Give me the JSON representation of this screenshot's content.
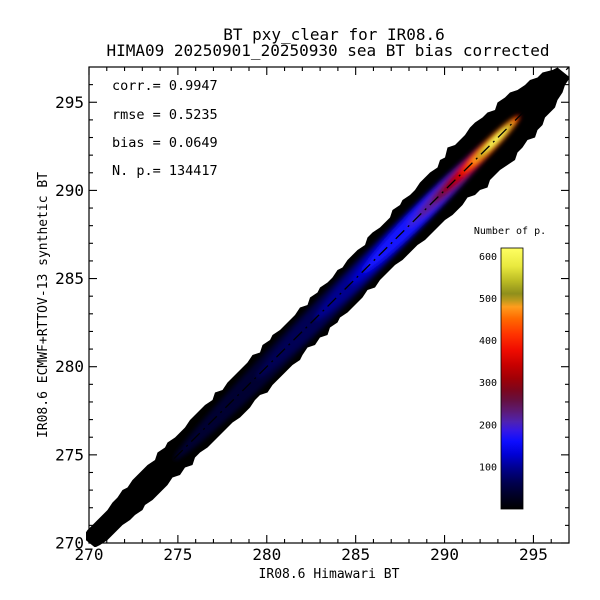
{
  "figure": {
    "background": "#ffffff",
    "text_color": "#000000"
  },
  "title": {
    "line1": "BT pxy_clear for IR08.6",
    "line2": "HIMA09 20250901_20250930 sea BT bias corrected"
  },
  "stats_display": {
    "corr": "corr.= 0.9947",
    "rmse": "rmse = 0.5235",
    "bias": "bias = 0.0649",
    "npoints": "N. p.=  134417"
  },
  "chart_data": {
    "type": "heatmap",
    "title": "BT pxy_clear for IR08.6",
    "subtitle": "HIMA09 20250901_20250930 sea BT bias corrected",
    "xlabel": "IR08.6 Himawari BT",
    "ylabel": "IR08.6 ECMWF+RTTOV-13 synthetic BT",
    "xlim": [
      270,
      297
    ],
    "ylim": [
      270,
      297
    ],
    "xticks": [
      270,
      275,
      280,
      285,
      290,
      295
    ],
    "yticks": [
      270,
      275,
      280,
      285,
      290,
      295
    ],
    "minor_tick_step": 1,
    "grid": false,
    "stats": {
      "corr": 0.9947,
      "rmse": 0.5235,
      "bias": 0.0649,
      "n_points": 134417
    },
    "identity_line": {
      "equation": "y = x",
      "style": "dash-dot",
      "color": "#000000"
    },
    "colorbar": {
      "title": "Number of p.",
      "min": 0,
      "max": 620,
      "ticks": [
        100,
        200,
        300,
        400,
        500,
        600
      ],
      "gradient": [
        [
          0.0,
          "#000000"
        ],
        [
          0.05,
          "#000024"
        ],
        [
          0.1,
          "#00004E"
        ],
        [
          0.16,
          "#000092"
        ],
        [
          0.21,
          "#0000D6"
        ],
        [
          0.26,
          "#0D0DFF"
        ],
        [
          0.3,
          "#3418E6"
        ],
        [
          0.335,
          "#4F22B0"
        ],
        [
          0.375,
          "#5D1A74"
        ],
        [
          0.415,
          "#651042"
        ],
        [
          0.455,
          "#7C061E"
        ],
        [
          0.5,
          "#A00006"
        ],
        [
          0.55,
          "#C60000"
        ],
        [
          0.61,
          "#F00C00"
        ],
        [
          0.67,
          "#FF3400"
        ],
        [
          0.73,
          "#FF6A00"
        ],
        [
          0.775,
          "#FF9D1D"
        ],
        [
          0.8,
          "#BC9A1C"
        ],
        [
          0.825,
          "#8F8F1C"
        ],
        [
          0.875,
          "#BCBC24"
        ],
        [
          0.93,
          "#E9E93E"
        ],
        [
          1.0,
          "#FFFF62"
        ]
      ]
    },
    "density": {
      "description": "Elongated diagonal density ridge along y=x from (270,270) to (296.7,296.7); counts rise toward the hot spot.",
      "peak": {
        "x": 292.8,
        "y": 293.0,
        "count": 620
      },
      "profile": [
        [
          270,
          0.48
        ],
        [
          271,
          0.6
        ],
        [
          272,
          0.7
        ],
        [
          273,
          0.76
        ],
        [
          274,
          0.81
        ],
        [
          275,
          0.85
        ],
        [
          276,
          0.88
        ],
        [
          277,
          0.9
        ],
        [
          278,
          0.92
        ],
        [
          279,
          0.94
        ],
        [
          280,
          0.96
        ],
        [
          281,
          0.97
        ],
        [
          282,
          0.98
        ],
        [
          283,
          1.0
        ],
        [
          284,
          1.01
        ],
        [
          285,
          1.03
        ],
        [
          286,
          1.06
        ],
        [
          287,
          1.1
        ],
        [
          288,
          1.16
        ],
        [
          289,
          1.23
        ],
        [
          290,
          1.3
        ],
        [
          291,
          1.37
        ],
        [
          292,
          1.42
        ],
        [
          292.8,
          1.45
        ],
        [
          293.5,
          1.42
        ],
        [
          294.2,
          1.33
        ],
        [
          295,
          1.15
        ],
        [
          295.7,
          0.92
        ],
        [
          296.2,
          0.68
        ],
        [
          296.7,
          0.4
        ]
      ],
      "layers": [
        [
          284.0,
          13.0,
          0.7,
          "#000030"
        ],
        [
          286.5,
          10.0,
          0.62,
          "#000055"
        ],
        [
          287.8,
          7.2,
          0.56,
          "#000090"
        ],
        [
          288.8,
          5.8,
          0.52,
          "#0000CC"
        ],
        [
          289.2,
          5.4,
          0.47,
          "#1414FF"
        ],
        [
          290.6,
          3.8,
          0.43,
          "#3A20D8"
        ],
        [
          291.0,
          3.5,
          0.41,
          "#5A1E96"
        ],
        [
          291.6,
          3.2,
          0.39,
          "#701048"
        ],
        [
          292.0,
          3.0,
          0.37,
          "#960414"
        ],
        [
          292.3,
          2.7,
          0.35,
          "#C00000"
        ],
        [
          292.5,
          2.45,
          0.32,
          "#E80800"
        ],
        [
          292.6,
          2.2,
          0.29,
          "#FF3800"
        ],
        [
          292.7,
          1.95,
          0.26,
          "#FF7000"
        ],
        [
          292.75,
          1.7,
          0.22,
          "#FFA326"
        ],
        [
          292.8,
          1.45,
          0.19,
          "#A8A81E"
        ],
        [
          292.85,
          1.15,
          0.155,
          "#D8D830"
        ],
        [
          292.9,
          0.85,
          0.115,
          "#FFFF58"
        ]
      ]
    }
  }
}
